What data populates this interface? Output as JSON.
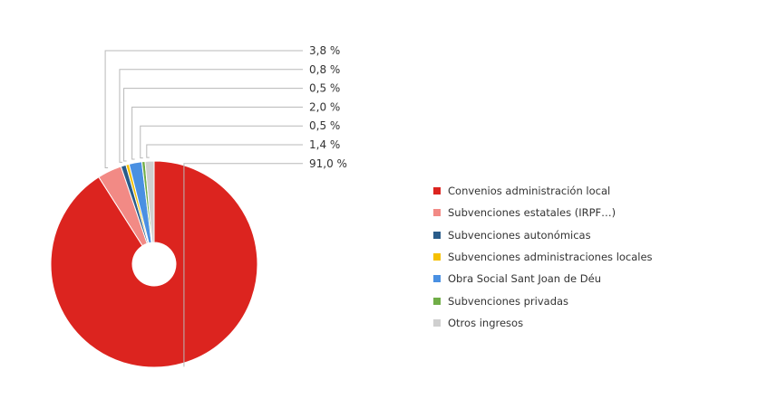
{
  "chart_data": {
    "type": "pie",
    "title": "",
    "series": [
      {
        "name": "Convenios administración local",
        "value": 91.0,
        "label": "91,0 %",
        "color": "#dc241f"
      },
      {
        "name": "Subvenciones estatales (IRPF…)",
        "value": 3.8,
        "label": "3,8 %",
        "color": "#f28a85"
      },
      {
        "name": "Subvenciones autonómicas",
        "value": 0.8,
        "label": "0,8 %",
        "color": "#2a5c8a"
      },
      {
        "name": "Subvenciones administraciones locales",
        "value": 0.5,
        "label": "0,5 %",
        "color": "#f5c000"
      },
      {
        "name": "Obra Social Sant Joan de Déu",
        "value": 2.0,
        "label": "2,0 %",
        "color": "#4a90e2"
      },
      {
        "name": "Subvenciones privadas",
        "value": 0.5,
        "label": "0,5 %",
        "color": "#70ad47"
      },
      {
        "name": "Otros ingresos",
        "value": 1.4,
        "label": "1,4 %",
        "color": "#cfcfcf"
      }
    ],
    "legend_position": "right"
  }
}
